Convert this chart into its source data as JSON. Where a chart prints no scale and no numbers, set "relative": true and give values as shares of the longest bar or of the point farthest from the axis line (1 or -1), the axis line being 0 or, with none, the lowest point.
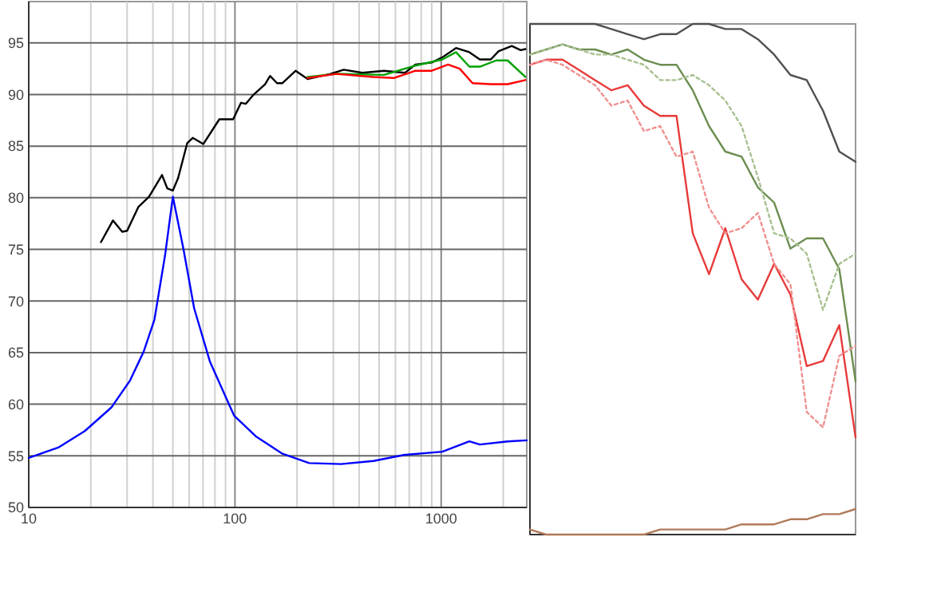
{
  "chart_data": [
    {
      "type": "line",
      "log": "x",
      "grid": true,
      "xlim": [
        10,
        2600
      ],
      "ylim": [
        50,
        99
      ],
      "xticks": [
        10,
        {
          "value": 20,
          "label": null
        },
        {
          "value": 30,
          "label": null
        },
        {
          "value": 40,
          "label": null
        },
        {
          "value": 50,
          "label": null
        },
        {
          "value": 60,
          "label": null
        },
        {
          "value": 70,
          "label": null
        },
        {
          "value": 80,
          "label": null
        },
        {
          "value": 90,
          "label": null
        },
        100,
        {
          "value": 200,
          "label": null
        },
        {
          "value": 300,
          "label": null
        },
        {
          "value": 400,
          "label": null
        },
        {
          "value": 500,
          "label": null
        },
        {
          "value": 600,
          "label": null
        },
        {
          "value": 700,
          "label": null
        },
        {
          "value": 800,
          "label": null
        },
        {
          "value": 900,
          "label": null
        },
        1000,
        {
          "value": 2000,
          "label": null
        }
      ],
      "yticks": [
        50,
        55,
        60,
        65,
        70,
        75,
        80,
        85,
        90,
        95
      ],
      "series": [
        {
          "color": "#000000",
          "x": [
            22.4,
            25.6,
            28.4,
            30,
            34,
            38.3,
            44.3,
            47,
            50,
            53,
            58.7,
            62.4,
            70.2,
            84,
            98,
            107,
            113,
            122,
            140,
            148,
            160,
            170,
            197,
            225,
            290,
            337,
            415,
            528,
            667,
            750,
            900,
            1013,
            1180,
            1370,
            1540,
            1740,
            1900,
            2200,
            2430,
            2560
          ],
          "values": [
            75.7,
            77.8,
            76.7,
            76.8,
            79.1,
            80.1,
            82.2,
            80.9,
            80.7,
            81.9,
            85.3,
            85.8,
            85.2,
            87.6,
            87.6,
            89.2,
            89.1,
            89.9,
            91,
            91.8,
            91.1,
            91.1,
            92.3,
            91.5,
            92,
            92.4,
            92.1,
            92.3,
            92.1,
            92.9,
            93.1,
            93.6,
            94.5,
            94.1,
            93.4,
            93.4,
            94.2,
            94.7,
            94.3,
            94.4
          ]
        },
        {
          "color": "#00a000",
          "x": [
            225,
            310,
            528,
            750,
            1013,
            1180,
            1370,
            1540,
            1850,
            2100,
            2560
          ],
          "values": [
            91.7,
            92,
            91.9,
            92.8,
            93.4,
            94.1,
            92.7,
            92.7,
            93.3,
            93.3,
            91.7
          ]
        },
        {
          "color": "#ff0000",
          "x": [
            225,
            310,
            470,
            590,
            750,
            900,
            1080,
            1230,
            1420,
            1740,
            2100,
            2560
          ],
          "values": [
            91.6,
            92,
            91.7,
            91.6,
            92.3,
            92.3,
            92.9,
            92.5,
            91.1,
            91,
            91,
            91.4
          ]
        },
        {
          "color": "#0000ff",
          "x": [
            10,
            13.9,
            18.7,
            25.2,
            31,
            36.1,
            40.7,
            45.8,
            50,
            56.3,
            63.4,
            75.7,
            99,
            126,
            170,
            229,
            327,
            469,
            667,
            1013,
            1370,
            1540,
            2100,
            2600
          ],
          "values": [
            54.8,
            55.8,
            57.4,
            59.7,
            62.3,
            65.1,
            68.2,
            74.4,
            80.1,
            75,
            69.3,
            64.1,
            58.9,
            56.9,
            55.2,
            54.3,
            54.2,
            54.5,
            55.1,
            55.4,
            56.4,
            56.1,
            56.4,
            56.5
          ]
        }
      ]
    },
    {
      "type": "line",
      "relative": true,
      "categories": [
        null,
        null,
        null,
        null,
        null,
        null,
        null,
        null,
        null,
        null,
        null,
        null,
        null,
        null,
        null,
        null,
        null,
        null,
        null,
        null,
        null
      ],
      "series": [
        {
          "color": "#505050",
          "values": [
            1.0,
            1.0,
            1.0,
            1.0,
            1.0,
            0.99,
            0.98,
            0.97,
            0.98,
            0.98,
            1.0,
            1.0,
            0.99,
            0.99,
            0.97,
            0.94,
            0.9,
            0.89,
            0.83,
            0.75,
            0.73
          ]
        },
        {
          "color": "#6b8e50",
          "values": [
            0.94,
            0.95,
            0.96,
            0.95,
            0.95,
            0.94,
            0.95,
            0.93,
            0.92,
            0.92,
            0.87,
            0.8,
            0.75,
            0.74,
            0.68,
            0.65,
            0.56,
            0.58,
            0.58,
            0.52,
            0.3
          ]
        },
        {
          "color": "#a8c090",
          "line_style": "dotted",
          "values": [
            0.94,
            0.95,
            0.96,
            0.95,
            0.94,
            0.94,
            0.93,
            0.92,
            0.89,
            0.89,
            0.9,
            0.88,
            0.85,
            0.8,
            0.7,
            0.59,
            0.58,
            0.55,
            0.44,
            0.53,
            0.55
          ]
        },
        {
          "color": "#e83a3a",
          "values": [
            0.92,
            0.93,
            0.93,
            0.91,
            0.89,
            0.87,
            0.88,
            0.84,
            0.82,
            0.82,
            0.59,
            0.51,
            0.6,
            0.5,
            0.46,
            0.53,
            0.47,
            0.33,
            0.34,
            0.41,
            0.19
          ]
        },
        {
          "color": "#f09090",
          "line_style": "dotted",
          "values": [
            0.92,
            0.93,
            0.92,
            0.9,
            0.88,
            0.84,
            0.85,
            0.79,
            0.8,
            0.74,
            0.75,
            0.64,
            0.59,
            0.6,
            0.63,
            0.53,
            0.49,
            0.24,
            0.21,
            0.35,
            0.37
          ]
        },
        {
          "color": "#b07a5a",
          "values": [
            0.01,
            0.0,
            0.0,
            0.0,
            0.0,
            0.0,
            0.0,
            0.0,
            0.01,
            0.01,
            0.01,
            0.01,
            0.01,
            0.02,
            0.02,
            0.02,
            0.03,
            0.03,
            0.04,
            0.04,
            0.05
          ]
        }
      ]
    }
  ]
}
